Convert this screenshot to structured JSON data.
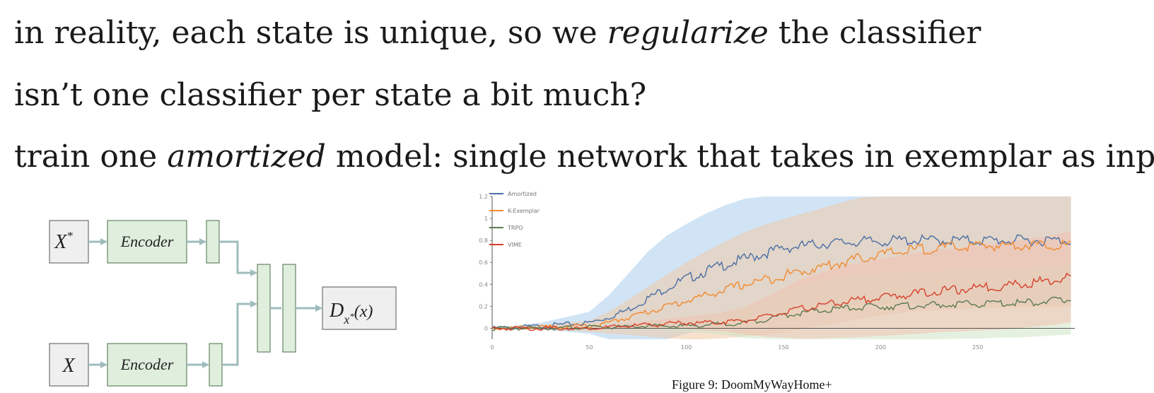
{
  "text_lines": {
    "line1": {
      "before": "in reality, each state is unique, so we ",
      "emph": "regularize",
      "after": " the classifier"
    },
    "line2": {
      "before": "isn’t one classifier per state a bit much?"
    },
    "line3": {
      "before": "train one ",
      "emph": "amortized",
      "after": " model: single network that takes in exemplar as input!"
    }
  },
  "diagram": {
    "input_top": "X",
    "input_top_sup": "*",
    "input_bottom": "X",
    "encoder_top": "Encoder",
    "encoder_bottom": "Encoder",
    "output_main": "D",
    "output_sub": "x",
    "output_sub_sup": "*",
    "output_tail": "(x)",
    "box_fill": "#dfeedd",
    "box_stroke": "#4a6e4a",
    "io_fill": "#efefef",
    "arrow_color": "#9fbcbc"
  },
  "figure_caption": "Figure 9: DoomMyWayHome+",
  "chart_data": {
    "type": "line",
    "xlim": [
      0,
      300
    ],
    "ylim": [
      -0.1,
      1.2
    ],
    "xticks": [
      0,
      50,
      100,
      150,
      200,
      250
    ],
    "yticks": [
      "0",
      "0.2",
      "0.4",
      "0.6",
      "0.8",
      "1",
      "1.2"
    ],
    "ytick_values": [
      0,
      0.2,
      0.4,
      0.6,
      0.8,
      1,
      1.2
    ],
    "legend_position": "top-left",
    "x": [
      0,
      25,
      50,
      60,
      70,
      80,
      90,
      100,
      110,
      120,
      130,
      140,
      150,
      160,
      170,
      180,
      190,
      200,
      210,
      220,
      230,
      240,
      250,
      260,
      270,
      280,
      290,
      298
    ],
    "series": [
      {
        "name": "Amortized",
        "color": "#4a6fa5",
        "band_color": "#a9cdef",
        "values": [
          0.0,
          0.02,
          0.05,
          0.1,
          0.17,
          0.27,
          0.37,
          0.45,
          0.52,
          0.58,
          0.63,
          0.68,
          0.73,
          0.75,
          0.77,
          0.78,
          0.79,
          0.79,
          0.8,
          0.8,
          0.8,
          0.8,
          0.8,
          0.8,
          0.8,
          0.8,
          0.8,
          0.8
        ],
        "band": [
          0.0,
          0.06,
          0.2,
          0.4,
          0.65,
          0.85,
          0.95,
          1.0,
          1.05,
          1.08,
          1.1,
          1.12,
          1.13,
          1.14,
          1.14,
          1.15,
          1.15,
          1.15,
          1.15,
          1.16,
          1.16,
          1.16,
          1.16,
          1.16,
          1.16,
          1.16,
          1.16,
          1.16
        ]
      },
      {
        "name": "K-Exemplar",
        "color": "#f28a2e",
        "band_color": "#f0c9a4",
        "values": [
          0.0,
          0.01,
          0.02,
          0.05,
          0.1,
          0.15,
          0.2,
          0.25,
          0.3,
          0.35,
          0.4,
          0.44,
          0.48,
          0.52,
          0.56,
          0.6,
          0.64,
          0.67,
          0.7,
          0.72,
          0.73,
          0.74,
          0.75,
          0.75,
          0.76,
          0.76,
          0.76,
          0.76
        ],
        "band": [
          0.0,
          0.04,
          0.1,
          0.2,
          0.32,
          0.45,
          0.58,
          0.7,
          0.8,
          0.88,
          0.95,
          1.0,
          1.03,
          1.05,
          1.07,
          1.09,
          1.1,
          1.11,
          1.12,
          1.12,
          1.13,
          1.13,
          1.13,
          1.13,
          1.13,
          1.13,
          1.13,
          1.13
        ]
      },
      {
        "name": "TRPO",
        "color": "#5a7a52",
        "band_color": "#cfe5c6",
        "values": [
          0.0,
          0.0,
          0.01,
          0.01,
          0.01,
          0.02,
          0.02,
          0.02,
          0.03,
          0.04,
          0.05,
          0.08,
          0.12,
          0.14,
          0.16,
          0.18,
          0.19,
          0.2,
          0.2,
          0.21,
          0.21,
          0.22,
          0.22,
          0.23,
          0.23,
          0.24,
          0.25,
          0.26
        ],
        "band": [
          0.0,
          0.01,
          0.02,
          0.03,
          0.04,
          0.06,
          0.08,
          0.1,
          0.15,
          0.2,
          0.28,
          0.35,
          0.45,
          0.5,
          0.55,
          0.58,
          0.6,
          0.6,
          0.61,
          0.62,
          0.62,
          0.63,
          0.63,
          0.63,
          0.63,
          0.63,
          0.63,
          0.63
        ]
      },
      {
        "name": "VIME",
        "color": "#d7402a",
        "band_color": "#f3c1b0",
        "values": [
          0.0,
          0.0,
          0.0,
          0.01,
          0.02,
          0.03,
          0.04,
          0.05,
          0.05,
          0.06,
          0.07,
          0.1,
          0.14,
          0.18,
          0.21,
          0.24,
          0.26,
          0.28,
          0.3,
          0.32,
          0.34,
          0.35,
          0.37,
          0.38,
          0.4,
          0.42,
          0.44,
          0.47
        ],
        "band": [
          0.0,
          0.01,
          0.02,
          0.03,
          0.05,
          0.07,
          0.09,
          0.11,
          0.14,
          0.18,
          0.25,
          0.35,
          0.45,
          0.55,
          0.6,
          0.65,
          0.68,
          0.7,
          0.72,
          0.74,
          0.75,
          0.76,
          0.78,
          0.79,
          0.8,
          0.81,
          0.82,
          0.83
        ]
      }
    ]
  }
}
